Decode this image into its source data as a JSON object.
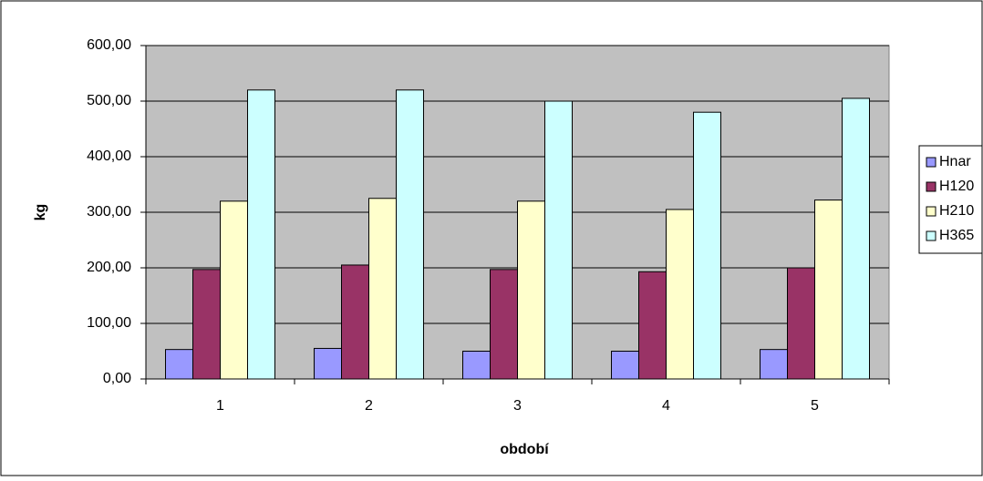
{
  "chart_data": {
    "type": "bar",
    "xlabel": "období",
    "ylabel": "kg",
    "categories": [
      "1",
      "2",
      "3",
      "4",
      "5"
    ],
    "series": [
      {
        "name": "Hnar",
        "color": "#9999ff",
        "values": [
          53,
          55,
          50,
          50,
          53
        ]
      },
      {
        "name": "H120",
        "color": "#993366",
        "values": [
          197,
          205,
          197,
          193,
          200
        ]
      },
      {
        "name": "H210",
        "color": "#ffffcc",
        "values": [
          320,
          325,
          320,
          305,
          322
        ]
      },
      {
        "name": "H365",
        "color": "#ccffff",
        "values": [
          520,
          520,
          500,
          480,
          505
        ]
      }
    ],
    "ylim": [
      0,
      600
    ],
    "yticks": [
      {
        "value": 0,
        "label": "0,00"
      },
      {
        "value": 100,
        "label": "100,00"
      },
      {
        "value": 200,
        "label": "200,00"
      },
      {
        "value": 300,
        "label": "300,00"
      },
      {
        "value": 400,
        "label": "400,00"
      },
      {
        "value": 500,
        "label": "500,00"
      },
      {
        "value": 600,
        "label": "600,00"
      }
    ],
    "grid": true,
    "legend": "right",
    "plot_background": "#c0c0c0"
  }
}
